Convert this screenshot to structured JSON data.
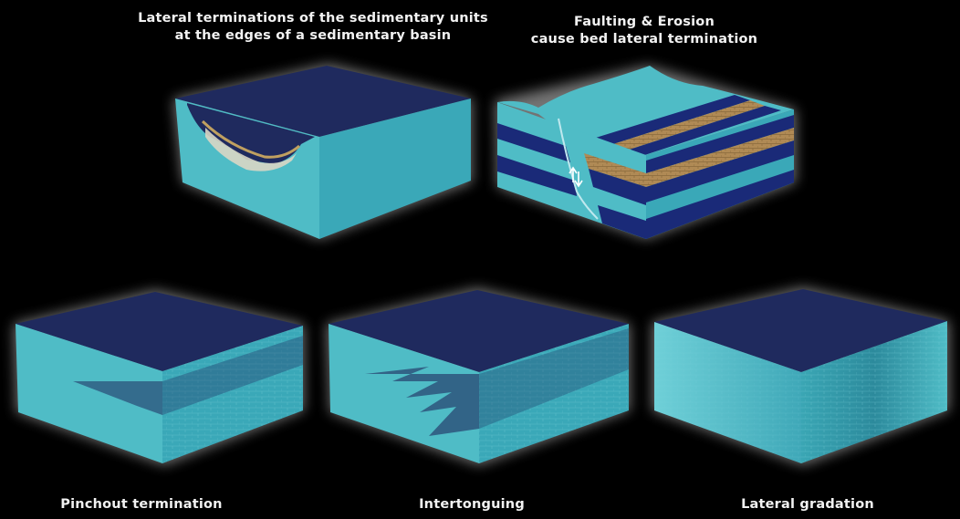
{
  "captions": {
    "basin_line1": "Lateral terminations of the sedimentary units",
    "basin_line2": "at the edges of a sedimentary basin",
    "fault_line1": "Faulting & Erosion",
    "fault_line2": "cause bed lateral termination",
    "pinchout": "Pinchout termination",
    "intertonguing": "Intertonguing",
    "gradation": "Lateral gradation"
  },
  "colors": {
    "background": "#000000",
    "top_surface": "#1f2a5e",
    "cyan_face": "#4fbcc6",
    "cyan_dark": "#2f8f9c",
    "navy_bed": "#1a2a78",
    "sand_bed": "#b08a55",
    "glow": "#ffffff"
  }
}
